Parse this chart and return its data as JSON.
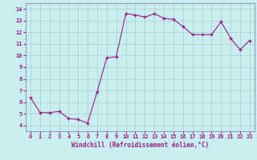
{
  "x": [
    0,
    1,
    2,
    3,
    4,
    5,
    6,
    7,
    8,
    9,
    10,
    11,
    12,
    13,
    14,
    15,
    16,
    17,
    18,
    19,
    20,
    21,
    22,
    23
  ],
  "y": [
    6.4,
    5.1,
    5.1,
    5.2,
    4.6,
    4.5,
    4.2,
    6.9,
    9.8,
    9.9,
    13.6,
    13.5,
    13.3,
    13.6,
    13.2,
    13.1,
    12.5,
    11.8,
    11.8,
    11.8,
    12.9,
    11.5,
    10.5,
    11.3
  ],
  "line_color": "#9B1C8A",
  "marker_color": "#9B1C8A",
  "bg_color": "#C8EEF0",
  "grid_color": "#AACCCC",
  "xlabel": "Windchill (Refroidissement éolien,°C)",
  "xlabel_color": "#9B1C8A",
  "ylim": [
    3.5,
    14.5
  ],
  "xlim": [
    -0.5,
    23.5
  ],
  "yticks": [
    4,
    5,
    6,
    7,
    8,
    9,
    10,
    11,
    12,
    13,
    14
  ],
  "xticks": [
    0,
    1,
    2,
    3,
    4,
    5,
    6,
    7,
    8,
    9,
    10,
    11,
    12,
    13,
    14,
    15,
    16,
    17,
    18,
    19,
    20,
    21,
    22,
    23
  ],
  "tick_label_color": "#9B1C8A",
  "spine_color": "#9999BB"
}
